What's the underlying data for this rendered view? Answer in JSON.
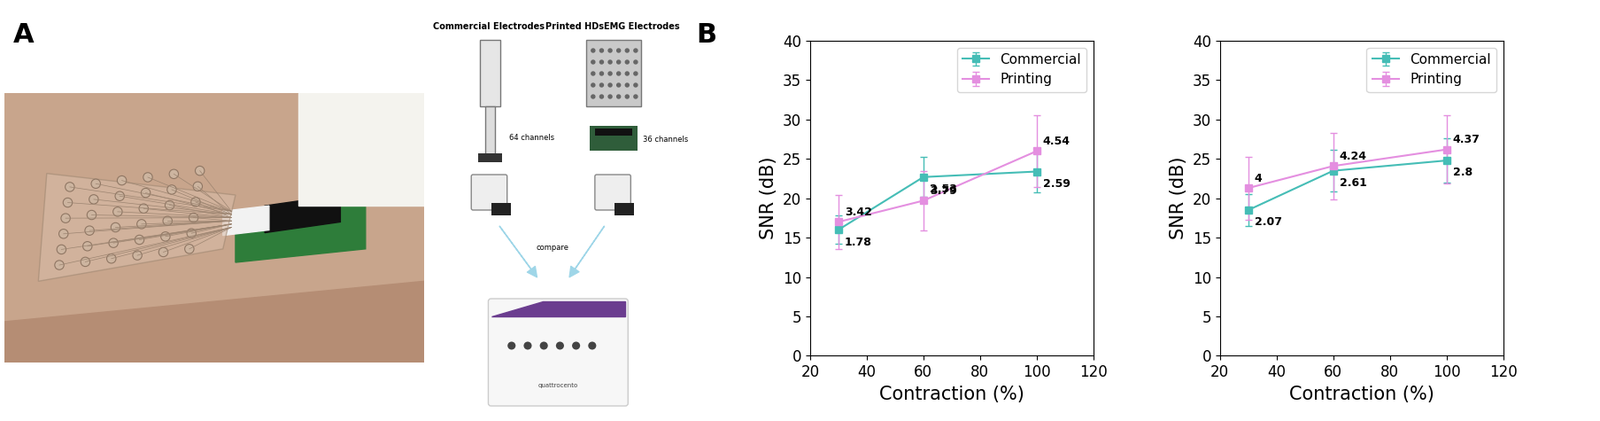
{
  "panels": [
    "A",
    "B"
  ],
  "diagram": {
    "commercial": {
      "title": "Commercial Electrodes",
      "channels": "64 channels"
    },
    "printed": {
      "title": "Printed HDsEMG Electrodes",
      "channels": "36 channels"
    },
    "arrow_label": "compare",
    "device_label": "quattrocento"
  },
  "chart_data": [
    {
      "type": "line",
      "xlabel": "Contraction (%)",
      "ylabel": "SNR (dB)",
      "xlim": [
        20,
        120
      ],
      "xticks": [
        20,
        40,
        60,
        80,
        100,
        120
      ],
      "ylim": [
        0,
        40
      ],
      "yticks": [
        0,
        5,
        10,
        15,
        20,
        25,
        30,
        35,
        40
      ],
      "legend": "upper right",
      "x": [
        30,
        60,
        100
      ],
      "series": [
        {
          "name": "Commercial",
          "color": "#45bdb6",
          "marker": "square",
          "line_style": "solid",
          "values": [
            16.0,
            22.7,
            23.4
          ],
          "errors": [
            1.78,
            2.53,
            2.59
          ]
        },
        {
          "name": "Printing",
          "color": "#e48fe0",
          "marker": "square",
          "line_style": "solid",
          "values": [
            17.0,
            19.7,
            26.0
          ],
          "errors": [
            3.42,
            3.79,
            4.54
          ]
        }
      ]
    },
    {
      "type": "line",
      "xlabel": "Contraction (%)",
      "ylabel": "SNR (dB)",
      "xlim": [
        20,
        120
      ],
      "xticks": [
        20,
        40,
        60,
        80,
        100,
        120
      ],
      "ylim": [
        0,
        40
      ],
      "yticks": [
        0,
        5,
        10,
        15,
        20,
        25,
        30,
        35,
        40
      ],
      "legend": "upper right",
      "x": [
        30,
        60,
        100
      ],
      "series": [
        {
          "name": "Commercial",
          "color": "#45bdb6",
          "marker": "square",
          "line_style": "solid",
          "values": [
            18.5,
            23.5,
            24.8
          ],
          "errors": [
            2.07,
            2.61,
            2.8
          ]
        },
        {
          "name": "Printing",
          "color": "#e48fe0",
          "marker": "square",
          "line_style": "solid",
          "values": [
            21.3,
            24.1,
            26.2
          ],
          "errors": [
            4,
            4.24,
            4.37
          ]
        }
      ]
    }
  ]
}
